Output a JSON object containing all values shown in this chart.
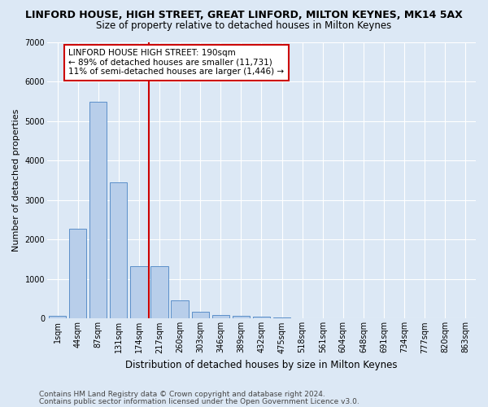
{
  "title": "LINFORD HOUSE, HIGH STREET, GREAT LINFORD, MILTON KEYNES, MK14 5AX",
  "subtitle": "Size of property relative to detached houses in Milton Keynes",
  "xlabel": "Distribution of detached houses by size in Milton Keynes",
  "ylabel": "Number of detached properties",
  "footer_line1": "Contains HM Land Registry data © Crown copyright and database right 2024.",
  "footer_line2": "Contains public sector information licensed under the Open Government Licence v3.0.",
  "categories": [
    "1sqm",
    "44sqm",
    "87sqm",
    "131sqm",
    "174sqm",
    "217sqm",
    "260sqm",
    "303sqm",
    "346sqm",
    "389sqm",
    "432sqm",
    "475sqm",
    "518sqm",
    "561sqm",
    "604sqm",
    "648sqm",
    "691sqm",
    "734sqm",
    "777sqm",
    "820sqm",
    "863sqm"
  ],
  "values": [
    80,
    2280,
    5480,
    3450,
    1320,
    1320,
    460,
    170,
    95,
    70,
    45,
    20,
    10,
    5,
    0,
    0,
    0,
    0,
    0,
    0,
    0
  ],
  "bar_color": "#b8ceea",
  "bar_edge_color": "#5b8fc9",
  "vline_x": 4.5,
  "vline_color": "#cc0000",
  "annotation_text_line1": "LINFORD HOUSE HIGH STREET: 190sqm",
  "annotation_text_line2": "← 89% of detached houses are smaller (11,731)",
  "annotation_text_line3": "11% of semi-detached houses are larger (1,446) →",
  "ylim": [
    0,
    7000
  ],
  "yticks": [
    0,
    1000,
    2000,
    3000,
    4000,
    5000,
    6000,
    7000
  ],
  "bg_color": "#dce8f5",
  "axes_bg_color": "#dce8f5",
  "grid_color": "#ffffff",
  "title_fontsize": 9,
  "subtitle_fontsize": 8.5,
  "ylabel_fontsize": 8,
  "xlabel_fontsize": 8.5,
  "tick_fontsize": 7,
  "annotation_fontsize": 7.5,
  "footer_fontsize": 6.5
}
